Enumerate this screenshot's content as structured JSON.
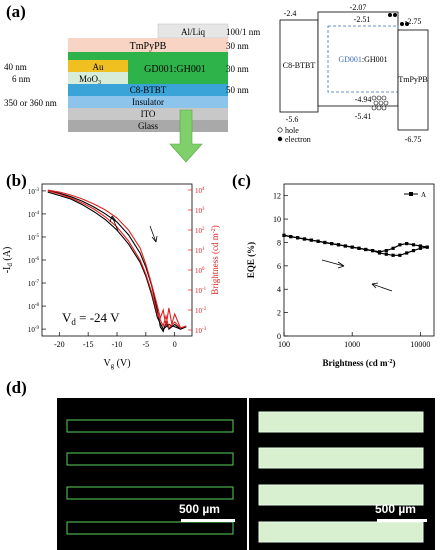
{
  "panels": {
    "a": "(a)",
    "b": "(b)",
    "c": "(c)",
    "d": "(d)"
  },
  "device_stack": {
    "layers": [
      {
        "name": "Al/Liq",
        "thickness": "100/1 nm",
        "color": "#e6e6e6"
      },
      {
        "name": "TmPyPB",
        "thickness": "30 nm",
        "color": "#f7d4c4"
      },
      {
        "name": "GD001:GH001",
        "thickness": "30 nm",
        "color": "#2db34a"
      },
      {
        "name": "C8-BTBT",
        "thickness": "50 nm",
        "color": "#3aa3d8"
      },
      {
        "name": "Insulator",
        "thickness": "",
        "color": "#8cc4ec"
      },
      {
        "name": "ITO",
        "thickness": "",
        "color": "#c8c8c8"
      },
      {
        "name": "Glass",
        "thickness": "",
        "color": "#a9a9a9"
      }
    ],
    "electrode_au": "Au",
    "electrode_moo": "MoO",
    "electrode_moo_sub": "3",
    "left_thicknesses": [
      "40 nm",
      "6 nm",
      "350 or 360 nm"
    ]
  },
  "energy_diagram": {
    "left_material": "C8-BTBT",
    "right_material": "TmPyPB",
    "center_material_a": "GD001",
    "center_material_b": ":GH001",
    "levels": [
      "-2.07",
      "-2.4",
      "-2.51",
      "-2.75",
      "-4.94",
      "-5.41",
      "-5.6",
      "-6.75"
    ],
    "legend_hole": "hole",
    "legend_electron": "electron",
    "accent": "#3a6fb5"
  },
  "chart_data": [
    {
      "type": "line",
      "panel": "(b)",
      "xlabel": "V",
      "xlabel_sub": "g",
      "xlabel_unit": " (V)",
      "ylabel": "-I",
      "ylabel_sub": "d",
      "ylabel_unit": " (A)",
      "y2label": "Brightness (cd m",
      "y2label_sup": "-2",
      "y2label_end": ")",
      "annotation": "V",
      "annotation_sub": "d",
      "annotation_end": " = -24 V",
      "xlim": [
        -23,
        3
      ],
      "ylim_log10": [
        -9.3,
        -2.7
      ],
      "y2lim_log10": [
        -3.3,
        4.3
      ],
      "xticks": [
        "-20",
        "-15",
        "-10",
        "-5",
        "0"
      ],
      "yticks": [
        "10",
        "10",
        "10",
        "10",
        "10",
        "10",
        "10"
      ],
      "ytick_exps": [
        "-9",
        "-8",
        "-7",
        "-6",
        "-5",
        "-4",
        "-3"
      ],
      "y2ticks": [
        "10",
        "10",
        "10",
        "10",
        "10",
        "10",
        "10",
        "10"
      ],
      "y2tick_exps": [
        "-3",
        "-2",
        "-1",
        "0",
        "1",
        "2",
        "3",
        "4"
      ],
      "series": [
        {
          "color": "#000000",
          "x": [
            -22,
            -20,
            -18,
            -16,
            -14,
            -12,
            -10,
            -8,
            -6,
            -5,
            -4,
            -3,
            -2.5,
            -2,
            -1.5,
            -1,
            0,
            1,
            2
          ],
          "y_log10": [
            -3.0,
            -3.1,
            -3.25,
            -3.45,
            -3.7,
            -4.0,
            -4.35,
            -4.9,
            -5.7,
            -6.3,
            -7.1,
            -8.2,
            -8.9,
            -9.1,
            -8.7,
            -9.0,
            -8.8,
            -9.0,
            -8.9
          ]
        },
        {
          "color": "#000000",
          "x": [
            -22,
            -20,
            -18,
            -16,
            -14,
            -12,
            -10,
            -8,
            -6,
            -5,
            -4,
            -3,
            -2,
            -1,
            0,
            1,
            2
          ],
          "y_log10": [
            -3.05,
            -3.2,
            -3.35,
            -3.6,
            -3.9,
            -4.25,
            -4.7,
            -5.3,
            -6.1,
            -6.7,
            -7.5,
            -8.5,
            -9.0,
            -8.8,
            -8.9,
            -9.0,
            -8.9
          ]
        },
        {
          "color": "#e02020",
          "x": [
            -22,
            -20,
            -18,
            -16,
            -14,
            -12,
            -10,
            -8,
            -6,
            -5,
            -4,
            -3,
            -2.5,
            -2,
            -1.5,
            -1,
            -0.5,
            0,
            1,
            2
          ],
          "y2_log10": [
            4.0,
            3.9,
            3.75,
            3.55,
            3.3,
            3.0,
            2.6,
            2.0,
            1.1,
            0.3,
            -0.7,
            -1.8,
            -2.4,
            -2.0,
            -2.8,
            -1.9,
            -2.7,
            -2.2,
            -2.9,
            -2.8
          ]
        },
        {
          "color": "#e02020",
          "x": [
            -22,
            -20,
            -18,
            -16,
            -14,
            -12,
            -10,
            -8,
            -6,
            -5,
            -4,
            -3,
            -2,
            -1.5,
            -1,
            0,
            1,
            2
          ],
          "y2_log10": [
            3.95,
            3.8,
            3.6,
            3.35,
            3.05,
            2.65,
            2.15,
            1.45,
            0.5,
            -0.2,
            -1.1,
            -2.2,
            -2.8,
            -2.3,
            -2.9,
            -2.6,
            -2.9,
            -2.8
          ]
        }
      ]
    },
    {
      "type": "line",
      "panel": "(c)",
      "xlabel": "Brightness (cd m",
      "xlabel_sup": "-2",
      "xlabel_end": ")",
      "ylabel": "EQE (%)",
      "legend_entry": "A",
      "xscale": "log",
      "xlim_log10": [
        2,
        4.2
      ],
      "ylim": [
        0,
        13
      ],
      "xticks": [
        "100",
        "1000",
        "10000"
      ],
      "yticks": [
        "0",
        "2",
        "4",
        "6",
        "8",
        "10",
        "12"
      ],
      "series": [
        {
          "name": "A",
          "color": "#000000",
          "x_log10": [
            2.0,
            2.1,
            2.2,
            2.3,
            2.4,
            2.5,
            2.6,
            2.7,
            2.8,
            2.9,
            3.0,
            3.1,
            3.2,
            3.3,
            3.4,
            3.5,
            3.6,
            3.7,
            3.8,
            3.9,
            4.0,
            4.1
          ],
          "y": [
            8.6,
            8.5,
            8.4,
            8.3,
            8.2,
            8.1,
            8.0,
            7.9,
            7.8,
            7.7,
            7.6,
            7.5,
            7.4,
            7.3,
            7.2,
            7.3,
            7.5,
            7.8,
            7.9,
            7.8,
            7.7,
            7.6
          ]
        },
        {
          "name": "A",
          "color": "#000000",
          "x_log10": [
            4.1,
            4.0,
            3.9,
            3.8,
            3.7,
            3.6,
            3.5,
            3.4,
            3.3,
            3.2,
            3.1,
            3.0,
            2.9,
            2.8,
            2.7,
            2.6,
            2.5,
            2.4,
            2.3,
            2.2,
            2.1,
            2.0
          ],
          "y": [
            7.6,
            7.5,
            7.3,
            7.1,
            6.9,
            6.9,
            7.0,
            7.1,
            7.3,
            7.4,
            7.5,
            7.6,
            7.7,
            7.8,
            7.9,
            8.0,
            8.1,
            8.2,
            8.3,
            8.4,
            8.5,
            8.6
          ]
        }
      ]
    }
  ],
  "micrographs": [
    {
      "scale_label": "500 µm",
      "accent": "#4fbf4f"
    },
    {
      "scale_label": "500 µm",
      "accent": "#d8efd0"
    }
  ]
}
